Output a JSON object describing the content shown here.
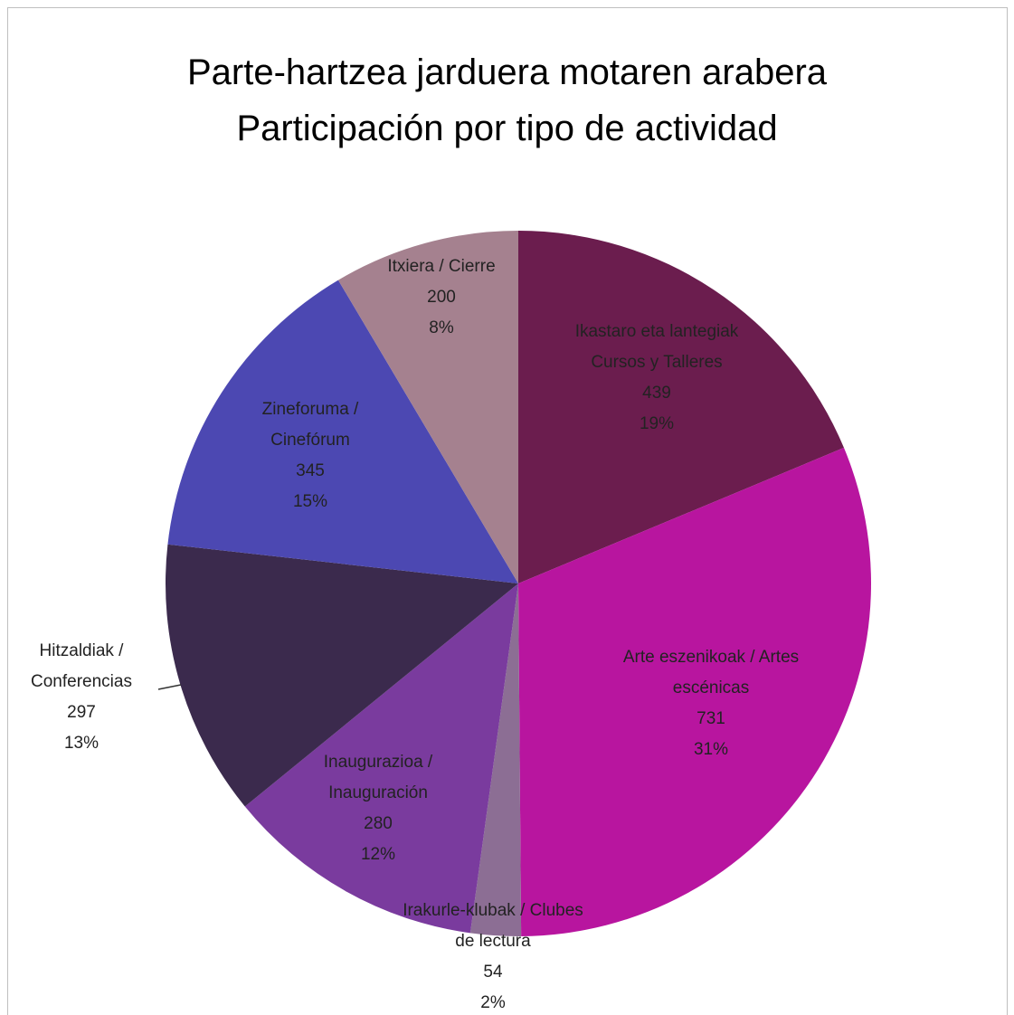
{
  "chart_data": {
    "type": "pie",
    "title": "Parte-hartzea jarduera motaren arabera",
    "subtitle": "Participación por tipo de actividad",
    "categories": [
      "Ikastaro eta lantegiak Cursos y Talleres",
      "Arte eszenikoak / Artes escénicas",
      "Irakurle-klubak / Clubes de lectura",
      "Inaugurazioa / Inauguración",
      "Hitzaldiak / Conferencias",
      "Zineforuma / Cinefórum",
      "Itxiera / Cierre"
    ],
    "values": [
      439,
      731,
      54,
      280,
      297,
      345,
      200
    ],
    "percent_labels": [
      "19%",
      "31%",
      "2%",
      "12%",
      "13%",
      "15%",
      "8%"
    ],
    "colors": [
      "#6b1d4e",
      "#b8159f",
      "#8c6e94",
      "#7a3b9e",
      "#3b2a4d",
      "#4c48b2",
      "#a5818f"
    ]
  }
}
